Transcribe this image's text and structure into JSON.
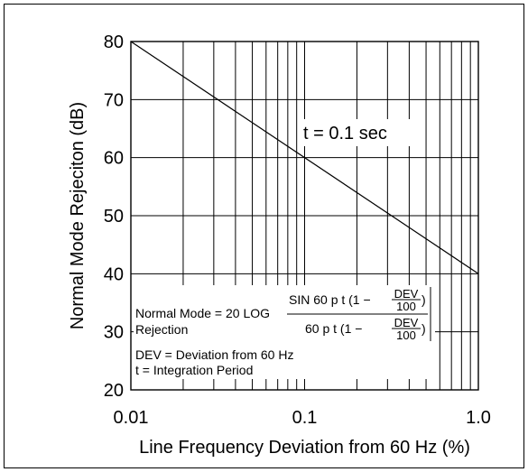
{
  "chart_data": {
    "type": "line",
    "xlabel": "Line Frequency Deviation from 60 Hz (%)",
    "ylabel": "Normal Mode Rejeciton (dB)",
    "x_scale": "log",
    "xlim": [
      0.01,
      1.0
    ],
    "ylim": [
      20,
      80
    ],
    "x_ticks": [
      "0.01",
      "0.1",
      "1.0"
    ],
    "y_ticks": [
      "20",
      "30",
      "40",
      "50",
      "60",
      "70",
      "80"
    ],
    "grid": true,
    "series": [
      {
        "x": [
          0.01,
          1.0
        ],
        "y": [
          80,
          40
        ]
      }
    ],
    "annotation": "t = 0.1 sec",
    "formula": {
      "lhs_line1": "Normal Mode = 20 LOG",
      "lhs_line2": "Rejection",
      "numerator_prefix": "SIN 60 p t (1 −",
      "denominator_prefix": "60 p t (1 −",
      "frac_top": "DEV",
      "frac_bottom": "100",
      "close_paren": ")",
      "def_dev": "DEV = Deviation from 60 Hz",
      "def_t": "t  = Integration Period"
    }
  }
}
